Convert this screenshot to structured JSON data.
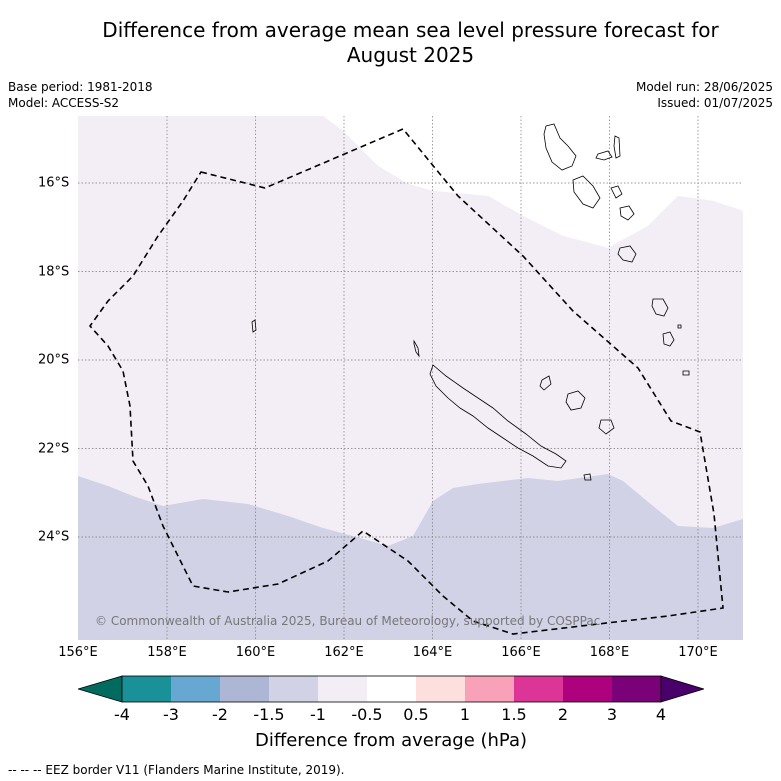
{
  "title_line1": "Difference from average mean sea level pressure forecast for",
  "title_line2": "August 2025",
  "base_period": "Base period: 1981-2018",
  "model": "Model: ACCESS-S2",
  "model_run": "Model run: 28/06/2025",
  "issued": "Issued: 01/07/2025",
  "lon_labels": [
    "156°E",
    "158°E",
    "160°E",
    "162°E",
    "164°E",
    "166°E",
    "168°E",
    "170°E"
  ],
  "lat_labels": [
    "16°S",
    "18°S",
    "20°S",
    "22°S",
    "24°S"
  ],
  "copyright": "© Commonwealth of Australia 2025, Bureau of Meteorology, supported by COSPPac",
  "colorbar": {
    "ticks": [
      "-4",
      "-3",
      "-2",
      "-1.5",
      "-1",
      "-0.5",
      "0.5",
      "1",
      "1.5",
      "2",
      "3",
      "4"
    ],
    "colors": [
      "#006b5e",
      "#1a9199",
      "#66a8d1",
      "#aeb6d6",
      "#d1d2e6",
      "#f3eef6",
      "#ffffff",
      "#fde0dd",
      "#f9a1b9",
      "#dd3497",
      "#ae017e",
      "#7a0177",
      "#49006a"
    ],
    "label": "Difference from average (hPa)"
  },
  "map_data": {
    "extent_lon": [
      156,
      171
    ],
    "extent_lat": [
      -26.5,
      -14.5
    ],
    "bands_hpa": [
      "-1.5 to -1",
      "-1 to -0.5",
      "-0.5 to 0.5"
    ]
  },
  "eez_note": "--  --  -- EEZ border V11 (Flanders Marine Institute, 2019)."
}
